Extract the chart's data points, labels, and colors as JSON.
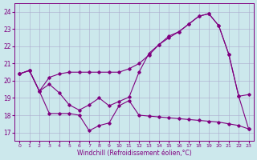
{
  "xlabel": "Windchill (Refroidissement éolien,°C)",
  "background_color": "#cce8ec",
  "line_color": "#800080",
  "grid_color": "#aaaacc",
  "ylim": [
    16.5,
    24.5
  ],
  "xlim": [
    -0.5,
    23.5
  ],
  "yticks": [
    17,
    18,
    19,
    20,
    21,
    22,
    23,
    24
  ],
  "xticks": [
    0,
    1,
    2,
    3,
    4,
    5,
    6,
    7,
    8,
    9,
    10,
    11,
    12,
    13,
    14,
    15,
    16,
    17,
    18,
    19,
    20,
    21,
    22,
    23
  ],
  "s1_x": [
    0,
    1,
    2,
    3,
    4,
    5,
    6,
    7,
    8,
    9,
    10,
    11,
    12,
    13,
    14,
    15,
    16,
    17,
    18,
    19,
    20,
    21,
    22,
    23
  ],
  "s1_y": [
    20.4,
    20.6,
    19.4,
    20.2,
    20.4,
    20.5,
    20.5,
    20.5,
    20.5,
    20.5,
    20.5,
    20.7,
    21.0,
    21.5,
    22.1,
    22.5,
    22.85,
    23.3,
    23.75,
    23.9,
    23.2,
    21.55,
    19.1,
    19.2
  ],
  "s2_x": [
    0,
    1,
    2,
    3,
    4,
    5,
    6,
    7,
    8,
    9,
    10,
    11,
    12,
    13,
    14,
    15,
    16,
    17,
    18,
    19,
    20,
    21,
    22,
    23
  ],
  "s2_y": [
    20.4,
    20.6,
    19.4,
    19.8,
    19.3,
    18.6,
    18.3,
    18.6,
    19.0,
    18.55,
    18.8,
    19.05,
    20.5,
    21.6,
    22.1,
    22.6,
    22.85,
    23.3,
    23.75,
    23.9,
    23.2,
    21.55,
    19.1,
    17.2
  ],
  "s3_x": [
    0,
    1,
    2,
    3,
    4,
    5,
    6,
    7,
    8,
    9,
    10,
    11,
    12,
    13,
    14,
    15,
    16,
    17,
    18,
    19,
    20,
    21,
    22,
    23
  ],
  "s3_y": [
    20.4,
    20.6,
    19.4,
    18.1,
    18.1,
    18.1,
    18.0,
    17.1,
    17.4,
    17.55,
    18.55,
    18.85,
    18.0,
    17.95,
    17.9,
    17.85,
    17.8,
    17.75,
    17.7,
    17.65,
    17.6,
    17.5,
    17.4,
    17.2
  ]
}
